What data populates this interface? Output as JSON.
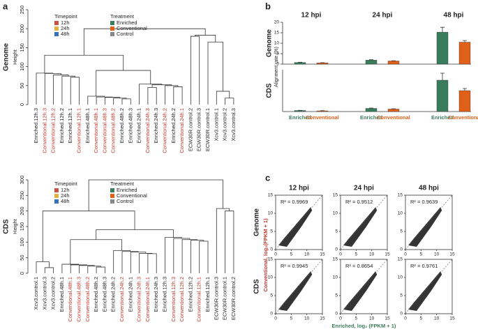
{
  "panels": [
    "a",
    "b",
    "c"
  ],
  "chart_data": [
    {
      "type": "dendrogram",
      "row_label": "Genome",
      "ylabel": "Height",
      "ylim": [
        0,
        250
      ],
      "yticks": [
        0,
        50,
        100,
        150,
        200,
        250
      ],
      "leaves": [
        "Enriched.12h.3",
        "Conventional.12h.3",
        "Conventional.12h.2",
        "Enriched.12h.2",
        "Enriched.12h.1",
        "Conventional.12h.1",
        "Enriched.48h.1",
        "Conventional.48h.1",
        "Conventional.48h.3",
        "Conventional.48h.2",
        "Enriched.48h.2",
        "Enriched.48h.3",
        "Enriched.24h.1",
        "Conventional.24h.3",
        "Enriched.24h.3",
        "Conventional.24h.2",
        "Enriched.24h.2",
        "Conventional.24h.1",
        "ECW30R.control.2",
        "ECW30R.control.3",
        "ECW30R.control.1",
        "Xcv3.control.1",
        "Xcv3.control.2",
        "Xcv3.control.3"
      ],
      "leaf_colors": [
        "#222",
        "#c0392b",
        "#c0392b",
        "#222",
        "#222",
        "#c0392b",
        "#222",
        "#c0392b",
        "#c0392b",
        "#c0392b",
        "#222",
        "#222",
        "#222",
        "#c0392b",
        "#222",
        "#c0392b",
        "#222",
        "#c0392b",
        "#222",
        "#222",
        "#222",
        "#222",
        "#222",
        "#222"
      ],
      "merges": [
        [
          4,
          5,
          72
        ],
        [
          3,
          24,
          75
        ],
        [
          2,
          25,
          78
        ],
        [
          1,
          26,
          82
        ],
        [
          0,
          27,
          83
        ],
        [
          10,
          11,
          15
        ],
        [
          9,
          29,
          17
        ],
        [
          8,
          30,
          19
        ],
        [
          7,
          31,
          20
        ],
        [
          6,
          32,
          22
        ],
        [
          13,
          14,
          45
        ],
        [
          16,
          17,
          47
        ],
        [
          15,
          35,
          50
        ],
        [
          34,
          36,
          52
        ],
        [
          12,
          37,
          54
        ],
        [
          33,
          38,
          90
        ],
        [
          28,
          39,
          130
        ],
        [
          22,
          23,
          17
        ],
        [
          21,
          41,
          35
        ],
        [
          20,
          42,
          165
        ],
        [
          18,
          19,
          180
        ],
        [
          44,
          43,
          183
        ],
        [
          40,
          45,
          200
        ]
      ],
      "legends": [
        {
          "title": "Timepoint",
          "items": [
            "12h",
            "24h",
            "48h"
          ],
          "colors": [
            "#c8524a",
            "#e0b040",
            "#3b6fb6"
          ]
        },
        {
          "title": "Treatment",
          "items": [
            "Enriched",
            "Conventional",
            "Control"
          ],
          "colors": [
            "#3a7d5c",
            "#e0601a",
            "#888888"
          ]
        }
      ]
    },
    {
      "type": "dendrogram",
      "row_label": "CDS",
      "ylabel": "Height",
      "ylim": [
        0,
        300
      ],
      "yticks": [
        0,
        50,
        100,
        150,
        200,
        250,
        300
      ],
      "leaves": [
        "Xcv3.control.1",
        "Xcv3.control.3",
        "Xcv3.control.2",
        "Enriched.48h.1",
        "Conventional.48h.1",
        "Conventional.48h.3",
        "Conventional.48h.2",
        "Enriched.48h.2",
        "Enriched.48h.3",
        "Enriched.24h.2",
        "Conventional.24h.2",
        "Enriched.24h.1",
        "Conventional.24h.3",
        "Conventional.24h.1",
        "Enriched.24h.3",
        "Enriched.12h.3",
        "Conventional.12h.3",
        "Conventional.12h.2",
        "Enriched.12h.2",
        "Conventional.12h.1",
        "Enriched.12h.1",
        "ECW30R.control.3",
        "ECW30R.control.1",
        "ECW30R.control.2"
      ],
      "leaf_colors": [
        "#222",
        "#222",
        "#222",
        "#222",
        "#c0392b",
        "#c0392b",
        "#c0392b",
        "#222",
        "#222",
        "#222",
        "#c0392b",
        "#222",
        "#c0392b",
        "#c0392b",
        "#222",
        "#222",
        "#c0392b",
        "#c0392b",
        "#222",
        "#c0392b",
        "#222",
        "#222",
        "#222",
        "#222"
      ],
      "merges": [
        [
          1,
          2,
          18
        ],
        [
          0,
          24,
          37
        ],
        [
          7,
          8,
          20
        ],
        [
          6,
          26,
          23
        ],
        [
          5,
          27,
          25
        ],
        [
          4,
          28,
          27
        ],
        [
          3,
          29,
          29
        ],
        [
          13,
          14,
          63
        ],
        [
          12,
          31,
          64
        ],
        [
          11,
          32,
          68
        ],
        [
          10,
          33,
          70
        ],
        [
          9,
          34,
          73
        ],
        [
          30,
          35,
          108
        ],
        [
          19,
          20,
          103
        ],
        [
          18,
          37,
          106
        ],
        [
          17,
          38,
          108
        ],
        [
          16,
          39,
          112
        ],
        [
          15,
          40,
          115
        ],
        [
          36,
          41,
          140
        ],
        [
          25,
          42,
          200
        ],
        [
          22,
          23,
          200
        ],
        [
          21,
          44,
          208
        ],
        [
          43,
          45,
          300
        ]
      ],
      "legends": [
        {
          "title": "Timepoint",
          "items": [
            "12h",
            "24h",
            "48h"
          ],
          "colors": [
            "#c8524a",
            "#e0b040",
            "#3b6fb6"
          ]
        },
        {
          "title": "Treatment",
          "items": [
            "Enriched",
            "Conventional",
            "Control"
          ],
          "colors": [
            "#3a7d5c",
            "#e0601a",
            "#888888"
          ]
        }
      ]
    },
    {
      "type": "bar",
      "row_label": "Genome",
      "ylabel": "Alignment rate (%)",
      "categories": [
        "12 hpi",
        "24 hpi",
        "48 hpi"
      ],
      "ylim": [
        0,
        20
      ],
      "yticks": [
        0,
        5,
        10,
        15,
        20
      ],
      "series": [
        {
          "name": "Enriched",
          "color": "#3a7d5c",
          "values": [
            0.8,
            1.9,
            15.3
          ],
          "errors": [
            0.1,
            0.2,
            2.3
          ]
        },
        {
          "name": "Conventional",
          "color": "#e0601a",
          "values": [
            0.6,
            1.5,
            10.5
          ],
          "errors": [
            0.1,
            0.1,
            0.8
          ]
        }
      ]
    },
    {
      "type": "bar",
      "row_label": "CDS",
      "ylim": [
        0,
        12
      ],
      "series": [
        {
          "name": "Enriched",
          "color": "#3a7d5c",
          "values": [
            0.3,
            0.9,
            9.0
          ],
          "errors": [
            0.05,
            0.1,
            2.0
          ]
        },
        {
          "name": "Conventional",
          "color": "#e0601a",
          "values": [
            0.2,
            0.7,
            6.0
          ],
          "errors": [
            0.05,
            0.1,
            0.6
          ]
        }
      ]
    },
    {
      "type": "scatter",
      "title": "12 hpi",
      "row_label": "Genome",
      "annotation": "R² = 0.9969",
      "xlim": [
        0,
        15
      ],
      "ylim": [
        0,
        15
      ],
      "xticks": [
        0,
        5,
        10,
        15
      ],
      "yticks": [
        0,
        5,
        10,
        15
      ],
      "ylabel": "Conventional, log₂(FPKM + 1)"
    },
    {
      "type": "scatter",
      "title": "24 hpi",
      "annotation": "R² = 0.9512",
      "xlim": [
        0,
        15
      ],
      "ylim": [
        0,
        15
      ],
      "xticks": [
        0,
        5,
        10,
        15
      ],
      "yticks": [
        0,
        5,
        10,
        15
      ]
    },
    {
      "type": "scatter",
      "title": "48 hpi",
      "annotation": "R² = 0.9639",
      "xlim": [
        0,
        15
      ],
      "ylim": [
        0,
        15
      ],
      "xticks": [
        0,
        5,
        10,
        15
      ],
      "yticks": [
        0,
        5,
        10,
        15
      ]
    },
    {
      "type": "scatter",
      "row_label": "CDS",
      "annotation": "R² = 0.9945",
      "xlim": [
        0,
        15
      ],
      "ylim": [
        0,
        15
      ],
      "xticks": [
        0,
        5,
        10,
        15
      ],
      "yticks": [
        0,
        5,
        10,
        15
      ]
    },
    {
      "type": "scatter",
      "annotation": "R² = 0.8654",
      "xlim": [
        0,
        15
      ],
      "ylim": [
        0,
        15
      ],
      "xticks": [
        0,
        5,
        10,
        15
      ],
      "yticks": [
        0,
        5,
        10,
        15
      ],
      "xlabel": "Enriched, log₂ (FPKM + 1)"
    },
    {
      "type": "scatter",
      "annotation": "R² = 0.9761",
      "xlim": [
        0,
        15
      ],
      "ylim": [
        0,
        15
      ],
      "xticks": [
        0,
        5,
        10,
        15
      ],
      "yticks": [
        0,
        5,
        10,
        15
      ]
    }
  ]
}
